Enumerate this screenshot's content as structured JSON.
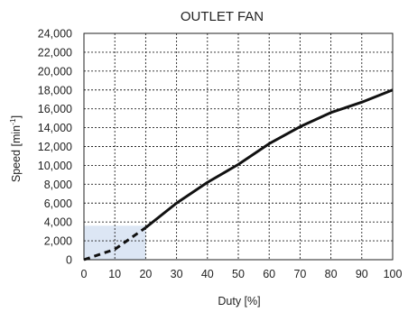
{
  "chart_data": {
    "type": "line",
    "title": "OUTLET FAN",
    "xlabel": "Duty [%]",
    "ylabel": "Speed [min",
    "ylabel_superscript": "-1",
    "ylabel_suffix": "]",
    "xlim": [
      0,
      100
    ],
    "ylim": [
      0,
      24000
    ],
    "x_ticks": [
      0,
      10,
      20,
      30,
      40,
      50,
      60,
      70,
      80,
      90,
      100
    ],
    "y_ticks": [
      0,
      2000,
      4000,
      6000,
      8000,
      10000,
      12000,
      14000,
      16000,
      18000,
      20000,
      22000,
      24000
    ],
    "x_tick_labels": [
      "0",
      "10",
      "20",
      "30",
      "40",
      "50",
      "60",
      "70",
      "80",
      "90",
      "100"
    ],
    "y_tick_labels": [
      "0",
      "2,000",
      "4,000",
      "6,000",
      "8,000",
      "10,000",
      "12,000",
      "14,000",
      "16,000",
      "18,000",
      "20,000",
      "22,000",
      "24,000"
    ],
    "grid": true,
    "series": [
      {
        "style": "dashed",
        "color": "#111111",
        "x": [
          0,
          10,
          20
        ],
        "y": [
          0,
          1100,
          3400
        ]
      },
      {
        "style": "solid",
        "color": "#111111",
        "x": [
          20,
          30,
          40,
          50,
          60,
          70,
          80,
          90,
          100
        ],
        "y": [
          3400,
          6000,
          8200,
          10100,
          12300,
          14100,
          15600,
          16700,
          18000
        ]
      }
    ],
    "highlight_region": {
      "x": [
        0,
        20
      ],
      "y": [
        0,
        3600
      ],
      "color": "#dce6f4"
    }
  }
}
